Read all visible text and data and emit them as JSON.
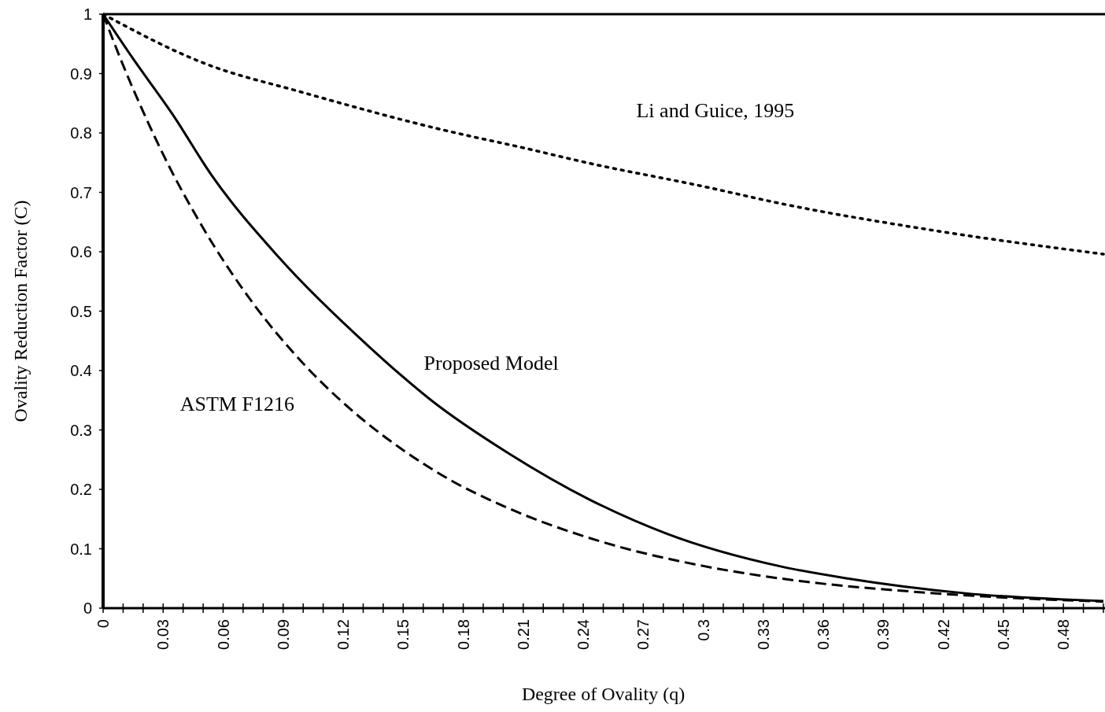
{
  "chart_data": {
    "type": "line",
    "xlabel": "Degree of Ovality (q)",
    "ylabel": "Ovality Reduction Factor (C)",
    "xlim": [
      0,
      0.5
    ],
    "ylim": [
      0,
      1
    ],
    "xticks": [
      0,
      {
        "value": 0.01,
        "label": null
      },
      {
        "value": 0.02,
        "label": null
      },
      0.03,
      {
        "value": 0.04,
        "label": null
      },
      {
        "value": 0.05,
        "label": null
      },
      0.06,
      {
        "value": 0.07,
        "label": null
      },
      {
        "value": 0.08,
        "label": null
      },
      0.09,
      {
        "value": 0.1,
        "label": null
      },
      {
        "value": 0.11,
        "label": null
      },
      0.12,
      {
        "value": 0.13,
        "label": null
      },
      {
        "value": 0.14,
        "label": null
      },
      0.15,
      {
        "value": 0.16,
        "label": null
      },
      {
        "value": 0.17,
        "label": null
      },
      0.18,
      {
        "value": 0.19,
        "label": null
      },
      {
        "value": 0.2,
        "label": null
      },
      0.21,
      {
        "value": 0.22,
        "label": null
      },
      {
        "value": 0.23,
        "label": null
      },
      0.24,
      {
        "value": 0.25,
        "label": null
      },
      {
        "value": 0.26,
        "label": null
      },
      0.27,
      {
        "value": 0.28,
        "label": null
      },
      {
        "value": 0.29,
        "label": null
      },
      0.3,
      {
        "value": 0.31,
        "label": null
      },
      {
        "value": 0.32,
        "label": null
      },
      0.33,
      {
        "value": 0.34,
        "label": null
      },
      {
        "value": 0.35,
        "label": null
      },
      0.36,
      {
        "value": 0.37,
        "label": null
      },
      {
        "value": 0.38,
        "label": null
      },
      0.39,
      {
        "value": 0.4,
        "label": null
      },
      {
        "value": 0.41,
        "label": null
      },
      0.42,
      {
        "value": 0.43,
        "label": null
      },
      {
        "value": 0.44,
        "label": null
      },
      0.45,
      {
        "value": 0.46,
        "label": null
      },
      {
        "value": 0.47,
        "label": null
      },
      0.48,
      {
        "value": 0.49,
        "label": null
      },
      {
        "value": 0.5,
        "label": null
      }
    ],
    "yticks": [
      0,
      0.1,
      0.2,
      0.3,
      0.4,
      0.5,
      0.6,
      0.7,
      0.8,
      0.9,
      1
    ],
    "grid": false,
    "series": [
      {
        "name": "Li and Guice, 1995",
        "color": "#000000",
        "line_style": "dotted",
        "x": [
          0,
          0.05,
          0.1,
          0.17,
          0.21,
          0.243,
          0.3,
          0.339,
          0.415,
          0.5
        ],
        "values": [
          1,
          0.918,
          0.868,
          0.805,
          0.775,
          0.749,
          0.71,
          0.681,
          0.636,
          0.596
        ]
      },
      {
        "name": "Proposed Model",
        "color": "#000000",
        "line_style": "solid",
        "x": [
          0,
          0.015,
          0.035,
          0.054,
          0.088,
          0.133,
          0.164,
          0.203,
          0.243,
          0.282,
          0.339,
          0.372,
          0.431,
          0.5
        ],
        "values": [
          1,
          0.925,
          0.83,
          0.73,
          0.59,
          0.44,
          0.35,
          0.26,
          0.183,
          0.125,
          0.07,
          0.05,
          0.025,
          0.012
        ]
      },
      {
        "name": "ASTM F1216",
        "color": "#000000",
        "line_style": "dashed",
        "x": [
          0,
          0.01,
          0.02,
          0.03,
          0.05,
          0.075,
          0.1,
          0.125,
          0.15,
          0.175,
          0.2,
          0.25,
          0.3,
          0.35,
          0.4,
          0.45,
          0.5
        ],
        "values": [
          1,
          0.914,
          0.836,
          0.764,
          0.64,
          0.513,
          0.412,
          0.331,
          0.266,
          0.213,
          0.172,
          0.111,
          0.071,
          0.045,
          0.029,
          0.018,
          0.011
        ]
      }
    ]
  }
}
